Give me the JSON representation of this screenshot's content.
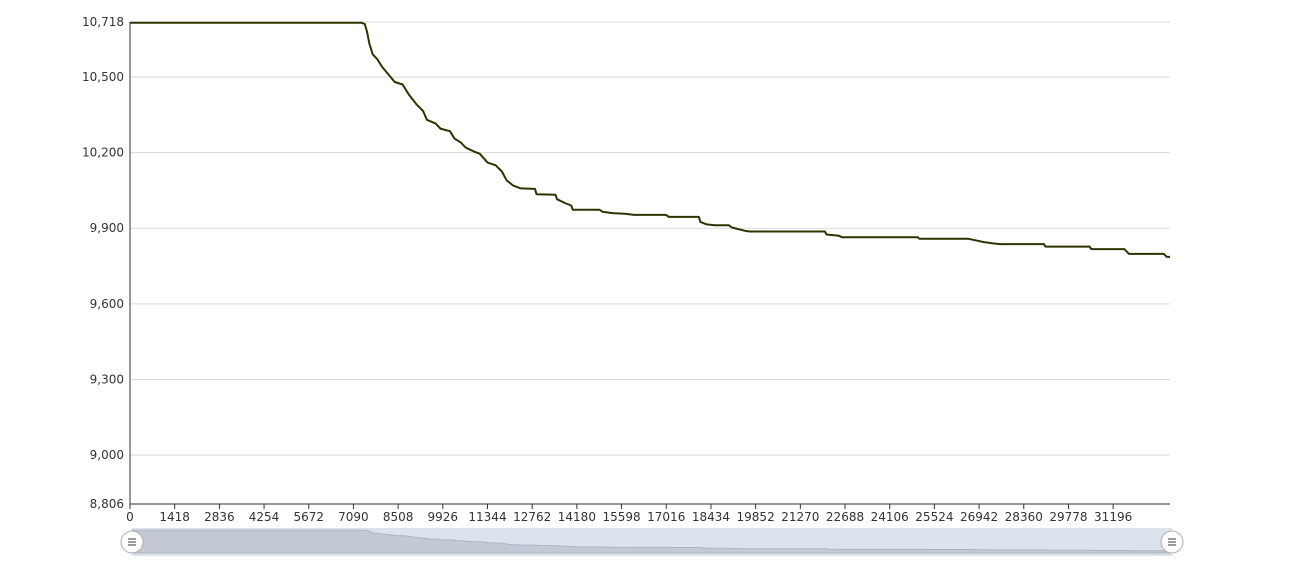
{
  "chart_data": {
    "type": "line",
    "series": [
      {
        "color": "#2e3300",
        "points": [
          [
            0,
            10715
          ],
          [
            7350,
            10715
          ],
          [
            7450,
            10710
          ],
          [
            7520,
            10680
          ],
          [
            7600,
            10630
          ],
          [
            7700,
            10590
          ],
          [
            7850,
            10570
          ],
          [
            8000,
            10540
          ],
          [
            8200,
            10510
          ],
          [
            8400,
            10480
          ],
          [
            8650,
            10470
          ],
          [
            8850,
            10430
          ],
          [
            9100,
            10390
          ],
          [
            9300,
            10365
          ],
          [
            9420,
            10330
          ],
          [
            9700,
            10315
          ],
          [
            9850,
            10295
          ],
          [
            10150,
            10285
          ],
          [
            10300,
            10255
          ],
          [
            10500,
            10240
          ],
          [
            10650,
            10220
          ],
          [
            10900,
            10205
          ],
          [
            11100,
            10195
          ],
          [
            11350,
            10160
          ],
          [
            11600,
            10150
          ],
          [
            11800,
            10125
          ],
          [
            11950,
            10090
          ],
          [
            12150,
            10070
          ],
          [
            12400,
            10058
          ],
          [
            12850,
            10056
          ],
          [
            12900,
            10035
          ],
          [
            13500,
            10033
          ],
          [
            13550,
            10015
          ],
          [
            13800,
            10000
          ],
          [
            14000,
            9990
          ],
          [
            14050,
            9973
          ],
          [
            14900,
            9973
          ],
          [
            15000,
            9965
          ],
          [
            15300,
            9960
          ],
          [
            15700,
            9957
          ],
          [
            16000,
            9953
          ],
          [
            17000,
            9953
          ],
          [
            17100,
            9945
          ],
          [
            18050,
            9945
          ],
          [
            18100,
            9925
          ],
          [
            18300,
            9915
          ],
          [
            18550,
            9912
          ],
          [
            19000,
            9912
          ],
          [
            19100,
            9903
          ],
          [
            19500,
            9890
          ],
          [
            19650,
            9887
          ],
          [
            22050,
            9887
          ],
          [
            22100,
            9875
          ],
          [
            22500,
            9870
          ],
          [
            22600,
            9864
          ],
          [
            25000,
            9864
          ],
          [
            25050,
            9858
          ],
          [
            26600,
            9858
          ],
          [
            26900,
            9850
          ],
          [
            27100,
            9845
          ],
          [
            27350,
            9840
          ],
          [
            27600,
            9837
          ],
          [
            29000,
            9837
          ],
          [
            29050,
            9827
          ],
          [
            30450,
            9827
          ],
          [
            30500,
            9817
          ],
          [
            31550,
            9817
          ],
          [
            31700,
            9798
          ],
          [
            32800,
            9798
          ],
          [
            32900,
            9786
          ],
          [
            33000,
            9786
          ]
        ]
      }
    ],
    "x_ticks": [
      "0",
      "1418",
      "2836",
      "4254",
      "5672",
      "7090",
      "8508",
      "9926",
      "11344",
      "12762",
      "14180",
      "15598",
      "17016",
      "18434",
      "19852",
      "21270",
      "22688",
      "24106",
      "25524",
      "26942",
      "28360",
      "29778",
      "31196"
    ],
    "y_ticks": [
      "10,718",
      "10,500",
      "10,200",
      "9,900",
      "9,600",
      "9,300",
      "9,000",
      "8,806"
    ],
    "xlim": [
      0,
      33000
    ],
    "ylim": [
      8806,
      10718
    ],
    "grid": true,
    "legend": "none",
    "navigator": true
  }
}
